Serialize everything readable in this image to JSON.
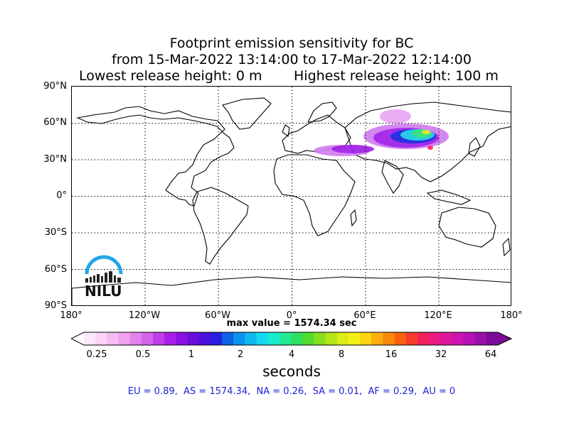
{
  "title": {
    "line1": "Footprint emission sensitivity for BC",
    "line2": "from 15-Mar-2022 13:14:00 to 17-Mar-2022 12:14:00",
    "lowest": "Lowest release height: 0 m",
    "highest": "Highest release height: 100 m"
  },
  "map": {
    "lat_labels": [
      "90°N",
      "60°N",
      "30°N",
      "0°",
      "30°S",
      "60°S",
      "90°S"
    ],
    "lon_labels": [
      "180°",
      "120°W",
      "60°W",
      "0°",
      "60°E",
      "120°E",
      "180°"
    ],
    "max_value": "max value = 1574.34 sec",
    "ocean_color": "#ffffff",
    "coast_color": "#000000",
    "plume_colors": [
      "#d07ef0",
      "#a01ee8",
      "#7a16d8",
      "#1820e0",
      "#16c8e0",
      "#28e07a",
      "#e0e020",
      "#ff2070"
    ]
  },
  "colorbar": {
    "ticks": [
      "0.25",
      "0.5",
      "1",
      "2",
      "4",
      "8",
      "16",
      "32",
      "64"
    ],
    "units": "seconds",
    "colors": [
      "#fde8fb",
      "#fbd4f8",
      "#f6bdf4",
      "#efa2ef",
      "#e283ec",
      "#d462ea",
      "#bf3de8",
      "#a81ee6",
      "#8a12e0",
      "#6a0ed8",
      "#4a10dc",
      "#2a1ee0",
      "#1060e6",
      "#0a94ea",
      "#10b8ee",
      "#14d8f0",
      "#18eccc",
      "#20ea98",
      "#2ce062",
      "#50dc2c",
      "#86e01e",
      "#b4e41a",
      "#dcec16",
      "#f4f016",
      "#fcd410",
      "#fcae0c",
      "#fa8a0c",
      "#f8600e",
      "#f63a2c",
      "#f2205a",
      "#ea1a80",
      "#de16a0",
      "#cc14b0",
      "#b412b4",
      "#9810a8",
      "#7a0c96"
    ]
  },
  "regions": "EU = 0.89,  AS = 1574.34,  NA = 0.26,  SA = 0.01,  AF = 0.29,  AU = 0",
  "logo": {
    "text": "NILU",
    "arc_color": "#22a6e6"
  }
}
